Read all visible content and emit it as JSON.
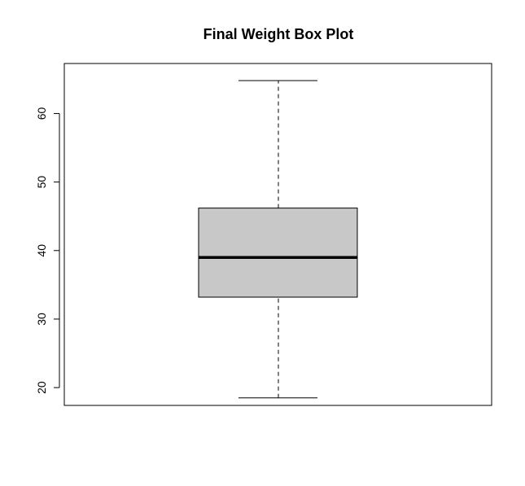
{
  "chart_data": {
    "type": "box",
    "title": "Final Weight Box Plot",
    "xlabel": "",
    "ylabel": "",
    "ylim": [
      17.4,
      67.3
    ],
    "y_ticks": [
      20,
      30,
      40,
      50,
      60
    ],
    "y_tick_labels": [
      "20",
      "30",
      "40",
      "50",
      "60"
    ],
    "box": {
      "min": 18.5,
      "q1": 33.2,
      "median": 39.0,
      "q3": 46.2,
      "max": 64.8
    },
    "grid": false,
    "colors": {
      "box_fill": "#c8c8c8",
      "stroke": "#000000",
      "background": "#ffffff"
    }
  }
}
